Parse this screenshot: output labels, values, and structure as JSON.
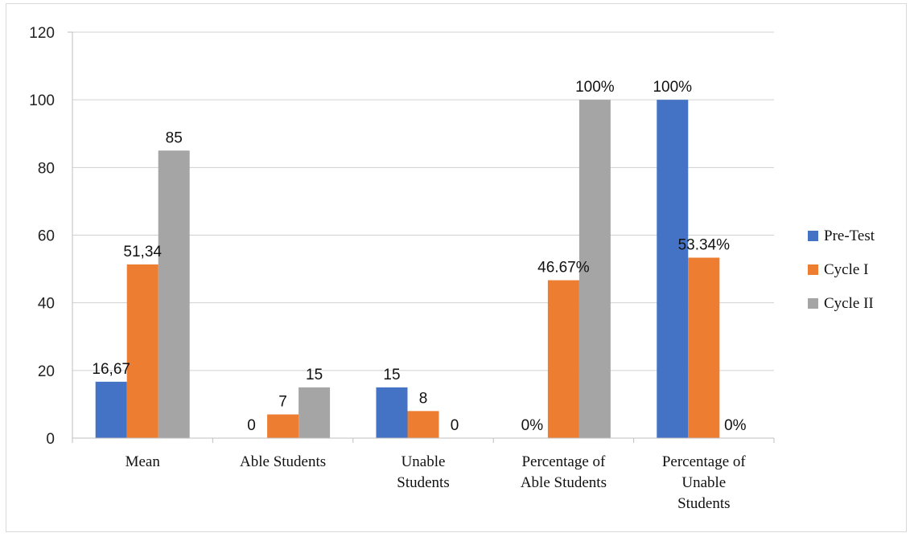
{
  "chart_data": {
    "type": "bar",
    "categories": [
      [
        "Mean"
      ],
      [
        "Able Students"
      ],
      [
        "Unable",
        "Students"
      ],
      [
        "Percentage of",
        "Able Students"
      ],
      [
        "Percentage of",
        "Unable",
        "Students"
      ]
    ],
    "series": [
      {
        "name": "Pre-Test",
        "color": "#4472C4",
        "values": [
          16.67,
          0,
          15,
          0,
          100
        ],
        "labels": [
          "16,67",
          "",
          "15",
          "0%",
          "100%"
        ]
      },
      {
        "name": "Cycle I",
        "color": "#ED7D31",
        "values": [
          51.34,
          7,
          8,
          46.67,
          53.34
        ],
        "labels": [
          "51,34",
          "7",
          "8",
          "46.67%",
          "53.34%"
        ]
      },
      {
        "name": "Cycle II",
        "color": "#A5A5A5",
        "values": [
          85,
          15,
          0,
          100,
          0
        ],
        "labels": [
          "85",
          "15",
          "0",
          "100%",
          "0%"
        ]
      }
    ],
    "extra_labels": [
      {
        "category": 1,
        "series": 0,
        "text": "0"
      }
    ],
    "ylim": [
      0,
      120
    ],
    "yticks": [
      0,
      20,
      40,
      60,
      80,
      100,
      120
    ],
    "grid": true,
    "legend_position": "right",
    "title": "",
    "xlabel": "",
    "ylabel": ""
  }
}
